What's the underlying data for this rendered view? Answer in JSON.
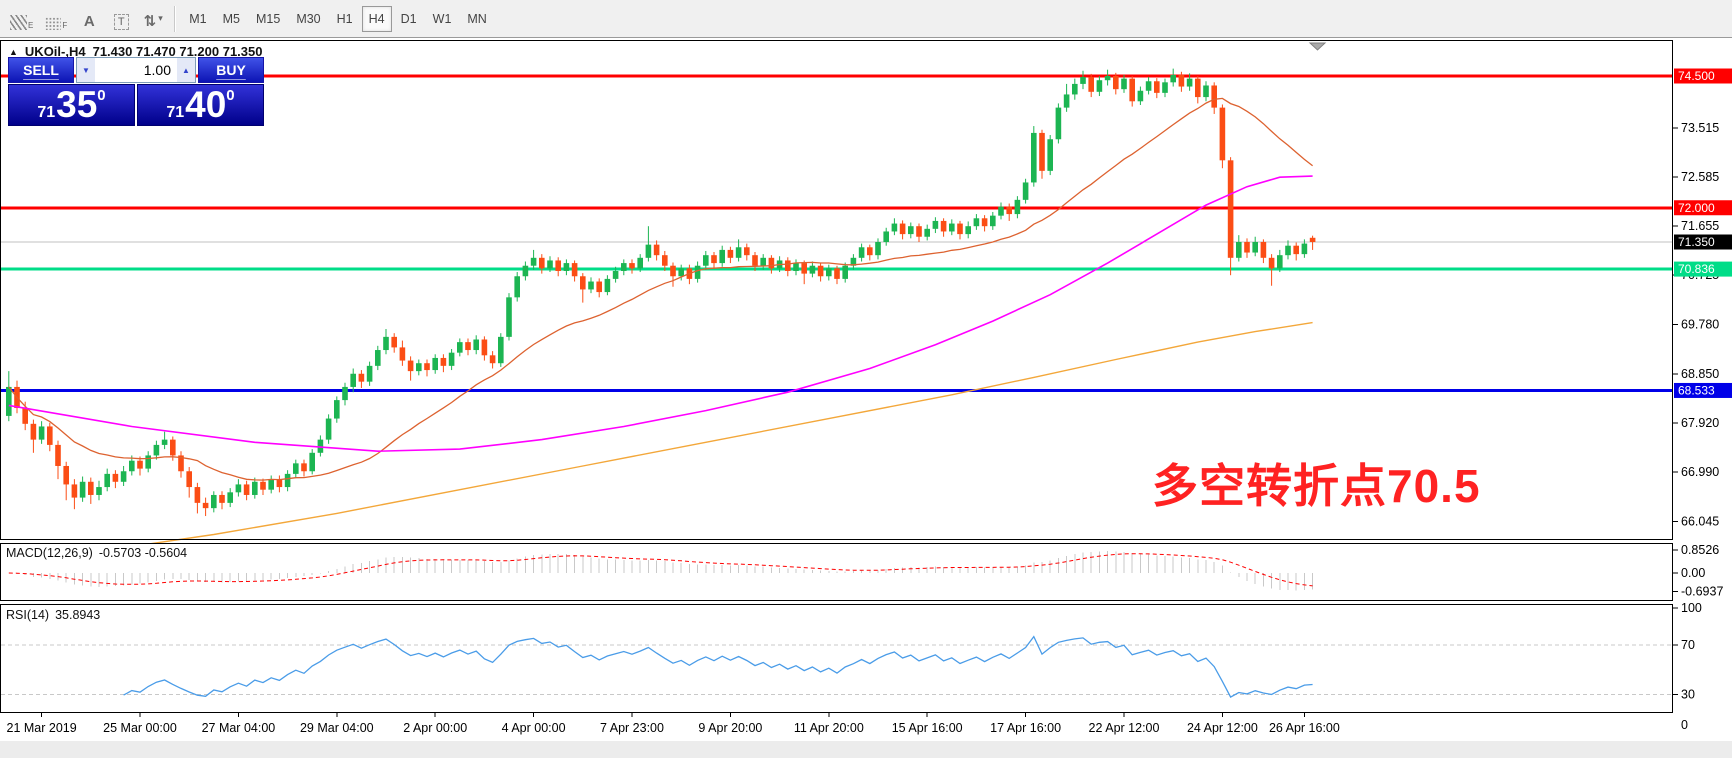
{
  "toolbar": {
    "tools": [
      {
        "name": "chart-style",
        "icon": "stripes",
        "sub": "E"
      },
      {
        "name": "grid",
        "icon": "dots",
        "sub": "F"
      },
      {
        "name": "text-label",
        "glyph": "A"
      },
      {
        "name": "text-box",
        "glyph": "T",
        "boxed": true
      },
      {
        "name": "sort-arrows",
        "glyph": "⇅",
        "caret": "▾"
      }
    ],
    "timeframes": [
      "M1",
      "M5",
      "M15",
      "M30",
      "H1",
      "H4",
      "D1",
      "W1",
      "MN"
    ],
    "active_timeframe": "H4"
  },
  "chart_header": {
    "collapse_icon": "▲",
    "symbol_period": "UKOil-,H4",
    "ohlc": "71.430 71.470 71.200 71.350"
  },
  "trade_panel": {
    "sell_label": "SELL",
    "buy_label": "BUY",
    "volume": "1.00",
    "volume_down": "▼",
    "volume_up": "▲",
    "sell_price": {
      "prefix": "71",
      "big": "35",
      "sup": "0"
    },
    "buy_price": {
      "prefix": "71",
      "big": "40",
      "sup": "0"
    }
  },
  "annotation": {
    "text": "多空转折点70.5",
    "color": "#ff2222"
  },
  "chart_data": {
    "type": "candlestick",
    "title": "UKOil-,H4",
    "symbol": "UKOil-",
    "period": "H4",
    "y_ticks": [
      73.515,
      72.585,
      71.655,
      70.725,
      69.78,
      68.85,
      67.92,
      66.99,
      66.045
    ],
    "levels": [
      {
        "value": 74.5,
        "label": "74.500",
        "color": "#ff0000",
        "width": 3,
        "badge_bg": "#ff0000",
        "badge_fg": "#ffffff"
      },
      {
        "value": 72.0,
        "label": "72.000",
        "color": "#ff0000",
        "width": 3,
        "badge_bg": "#ff0000",
        "badge_fg": "#ffffff"
      },
      {
        "value": 70.836,
        "label": "70.836",
        "color": "#00dd88",
        "width": 3,
        "badge_bg": "#00dd88",
        "badge_fg": "#ffffff"
      },
      {
        "value": 68.533,
        "label": "68.533",
        "color": "#0000e8",
        "width": 3,
        "badge_bg": "#0000e8",
        "badge_fg": "#ffffff"
      }
    ],
    "current_price": {
      "value": 71.35,
      "label": "71.350",
      "line_color": "#c0c0c0",
      "badge_bg": "#000000",
      "badge_fg": "#ffffff"
    },
    "x_labels": [
      "21 Mar 2019",
      "25 Mar 00:00",
      "27 Mar 04:00",
      "29 Mar 04:00",
      "2 Apr 00:00",
      "4 Apr 00:00",
      "7 Apr 23:00",
      "9 Apr 20:00",
      "11 Apr 20:00",
      "15 Apr 16:00",
      "17 Apr 16:00",
      "22 Apr 12:00",
      "24 Apr 12:00",
      "26 Apr 16:00"
    ],
    "x_tick_bars": [
      4,
      16,
      28,
      40,
      52,
      64,
      76,
      88,
      100,
      112,
      124,
      136,
      148,
      158
    ],
    "colors": {
      "up": "#1cb552",
      "down": "#fb4d15",
      "ma_fast": "#dd6230",
      "ma_mid": "#ff00ff",
      "ma_slow": "#f3a73a"
    },
    "candles": [
      [
        68.05,
        68.9,
        67.95,
        68.6
      ],
      [
        68.6,
        68.72,
        68.1,
        68.2
      ],
      [
        68.2,
        68.32,
        67.78,
        67.9
      ],
      [
        67.9,
        67.98,
        67.35,
        67.6
      ],
      [
        67.6,
        67.95,
        67.52,
        67.85
      ],
      [
        67.85,
        67.92,
        67.38,
        67.5
      ],
      [
        67.5,
        67.58,
        66.85,
        67.1
      ],
      [
        67.1,
        67.18,
        66.45,
        66.75
      ],
      [
        66.75,
        66.85,
        66.28,
        66.5
      ],
      [
        66.5,
        66.9,
        66.42,
        66.8
      ],
      [
        66.8,
        66.88,
        66.38,
        66.55
      ],
      [
        66.55,
        66.82,
        66.45,
        66.7
      ],
      [
        66.7,
        67.05,
        66.62,
        66.95
      ],
      [
        66.95,
        67.02,
        66.68,
        66.8
      ],
      [
        66.8,
        67.1,
        66.72,
        67.0
      ],
      [
        67.0,
        67.3,
        66.92,
        67.2
      ],
      [
        67.2,
        67.28,
        66.92,
        67.05
      ],
      [
        67.05,
        67.38,
        66.98,
        67.3
      ],
      [
        67.3,
        67.58,
        67.22,
        67.5
      ],
      [
        67.5,
        67.75,
        67.42,
        67.6
      ],
      [
        67.6,
        67.66,
        67.2,
        67.3
      ],
      [
        67.3,
        67.38,
        66.88,
        67.0
      ],
      [
        67.0,
        67.08,
        66.5,
        66.7
      ],
      [
        66.7,
        66.78,
        66.2,
        66.4
      ],
      [
        66.4,
        66.5,
        66.15,
        66.3
      ],
      [
        66.3,
        66.62,
        66.22,
        66.55
      ],
      [
        66.55,
        66.62,
        66.28,
        66.4
      ],
      [
        66.4,
        66.68,
        66.32,
        66.6
      ],
      [
        66.6,
        66.85,
        66.52,
        66.75
      ],
      [
        66.75,
        66.82,
        66.45,
        66.55
      ],
      [
        66.55,
        66.88,
        66.48,
        66.8
      ],
      [
        66.8,
        66.86,
        66.55,
        66.65
      ],
      [
        66.65,
        66.92,
        66.58,
        66.85
      ],
      [
        66.85,
        66.92,
        66.6,
        66.7
      ],
      [
        66.7,
        67.02,
        66.62,
        66.95
      ],
      [
        66.95,
        67.22,
        66.88,
        67.15
      ],
      [
        67.15,
        67.22,
        66.9,
        67.0
      ],
      [
        67.0,
        67.42,
        66.94,
        67.35
      ],
      [
        67.35,
        67.68,
        67.28,
        67.6
      ],
      [
        67.6,
        68.08,
        67.52,
        68.0
      ],
      [
        68.0,
        68.42,
        67.92,
        68.35
      ],
      [
        68.35,
        68.68,
        68.25,
        68.6
      ],
      [
        68.6,
        68.95,
        68.5,
        68.85
      ],
      [
        68.85,
        68.92,
        68.58,
        68.7
      ],
      [
        68.7,
        69.08,
        68.62,
        69.0
      ],
      [
        69.0,
        69.38,
        68.92,
        69.3
      ],
      [
        69.3,
        69.7,
        69.22,
        69.55
      ],
      [
        69.55,
        69.62,
        69.25,
        69.35
      ],
      [
        69.35,
        69.48,
        69.0,
        69.1
      ],
      [
        69.1,
        69.18,
        68.72,
        68.9
      ],
      [
        68.9,
        69.12,
        68.82,
        69.05
      ],
      [
        69.05,
        69.12,
        68.8,
        68.92
      ],
      [
        68.92,
        69.22,
        68.85,
        69.15
      ],
      [
        69.15,
        69.22,
        68.88,
        69.0
      ],
      [
        69.0,
        69.32,
        68.92,
        69.25
      ],
      [
        69.25,
        69.52,
        69.18,
        69.45
      ],
      [
        69.45,
        69.52,
        69.2,
        69.3
      ],
      [
        69.3,
        69.58,
        69.22,
        69.5
      ],
      [
        69.5,
        69.56,
        69.1,
        69.2
      ],
      [
        69.2,
        69.28,
        68.95,
        69.05
      ],
      [
        69.05,
        69.62,
        68.98,
        69.55
      ],
      [
        69.55,
        70.38,
        69.48,
        70.3
      ],
      [
        70.3,
        70.78,
        70.22,
        70.7
      ],
      [
        70.7,
        70.98,
        70.62,
        70.9
      ],
      [
        70.9,
        71.2,
        70.82,
        71.05
      ],
      [
        71.05,
        71.12,
        70.75,
        70.85
      ],
      [
        70.85,
        71.08,
        70.78,
        71.0
      ],
      [
        71.0,
        71.06,
        70.7,
        70.8
      ],
      [
        70.8,
        71.02,
        70.72,
        70.95
      ],
      [
        70.95,
        71.0,
        70.6,
        70.7
      ],
      [
        70.7,
        70.76,
        70.2,
        70.45
      ],
      [
        70.45,
        70.68,
        70.38,
        70.6
      ],
      [
        70.6,
        70.66,
        70.3,
        70.4
      ],
      [
        70.4,
        70.72,
        70.34,
        70.65
      ],
      [
        70.65,
        70.88,
        70.58,
        70.8
      ],
      [
        70.8,
        71.02,
        70.72,
        70.95
      ],
      [
        70.95,
        71.02,
        70.75,
        70.85
      ],
      [
        70.85,
        71.12,
        70.78,
        71.05
      ],
      [
        71.05,
        71.65,
        70.98,
        71.3
      ],
      [
        71.3,
        71.38,
        71.0,
        71.1
      ],
      [
        71.1,
        71.18,
        70.8,
        70.9
      ],
      [
        70.9,
        70.96,
        70.5,
        70.7
      ],
      [
        70.7,
        70.92,
        70.62,
        70.85
      ],
      [
        70.85,
        70.92,
        70.55,
        70.65
      ],
      [
        70.65,
        70.98,
        70.58,
        70.9
      ],
      [
        70.9,
        71.18,
        70.82,
        71.1
      ],
      [
        71.1,
        71.16,
        70.85,
        70.95
      ],
      [
        70.95,
        71.28,
        70.88,
        71.2
      ],
      [
        71.2,
        71.26,
        70.95,
        71.05
      ],
      [
        71.05,
        71.4,
        70.98,
        71.25
      ],
      [
        71.25,
        71.32,
        71.0,
        71.1
      ],
      [
        71.1,
        71.16,
        70.8,
        70.9
      ],
      [
        70.9,
        71.12,
        70.82,
        71.05
      ],
      [
        71.05,
        71.1,
        70.75,
        70.85
      ],
      [
        70.85,
        71.08,
        70.78,
        71.0
      ],
      [
        71.0,
        71.06,
        70.7,
        70.8
      ],
      [
        70.8,
        71.02,
        70.72,
        70.95
      ],
      [
        70.95,
        71.0,
        70.55,
        70.75
      ],
      [
        70.75,
        70.98,
        70.68,
        70.9
      ],
      [
        70.9,
        70.96,
        70.6,
        70.7
      ],
      [
        70.7,
        70.92,
        70.62,
        70.85
      ],
      [
        70.85,
        70.9,
        70.55,
        70.65
      ],
      [
        70.65,
        70.96,
        70.58,
        70.9
      ],
      [
        70.9,
        71.12,
        70.82,
        71.05
      ],
      [
        71.05,
        71.32,
        70.98,
        71.25
      ],
      [
        71.25,
        71.3,
        71.0,
        71.1
      ],
      [
        71.1,
        71.42,
        71.02,
        71.35
      ],
      [
        71.35,
        71.62,
        71.28,
        71.55
      ],
      [
        71.55,
        71.8,
        71.48,
        71.7
      ],
      [
        71.7,
        71.76,
        71.4,
        71.5
      ],
      [
        71.5,
        71.72,
        71.42,
        71.65
      ],
      [
        71.65,
        71.7,
        71.35,
        71.45
      ],
      [
        71.45,
        71.68,
        71.38,
        71.6
      ],
      [
        71.6,
        71.82,
        71.52,
        71.75
      ],
      [
        71.75,
        71.8,
        71.45,
        71.55
      ],
      [
        71.55,
        71.78,
        71.48,
        71.7
      ],
      [
        71.7,
        71.75,
        71.4,
        71.5
      ],
      [
        71.5,
        71.74,
        71.42,
        71.65
      ],
      [
        71.65,
        71.88,
        71.58,
        71.8
      ],
      [
        71.8,
        71.86,
        71.55,
        71.65
      ],
      [
        71.65,
        71.92,
        71.58,
        71.85
      ],
      [
        71.85,
        72.1,
        71.78,
        72.02
      ],
      [
        72.02,
        72.08,
        71.75,
        71.88
      ],
      [
        71.88,
        72.22,
        71.8,
        72.15
      ],
      [
        72.15,
        72.55,
        72.08,
        72.48
      ],
      [
        72.48,
        73.55,
        72.4,
        73.42
      ],
      [
        73.42,
        73.48,
        72.55,
        72.7
      ],
      [
        72.7,
        73.38,
        72.62,
        73.3
      ],
      [
        73.3,
        73.98,
        73.22,
        73.9
      ],
      [
        73.9,
        74.35,
        73.82,
        74.15
      ],
      [
        74.15,
        74.45,
        74.05,
        74.35
      ],
      [
        74.35,
        74.6,
        74.25,
        74.48
      ],
      [
        74.48,
        74.54,
        74.1,
        74.2
      ],
      [
        74.2,
        74.5,
        74.12,
        74.42
      ],
      [
        74.42,
        74.62,
        74.32,
        74.5
      ],
      [
        74.5,
        74.56,
        74.15,
        74.25
      ],
      [
        74.25,
        74.52,
        74.18,
        74.45
      ],
      [
        74.45,
        74.5,
        73.92,
        74.02
      ],
      [
        74.02,
        74.3,
        73.95,
        74.22
      ],
      [
        74.22,
        74.48,
        74.15,
        74.4
      ],
      [
        74.4,
        74.46,
        74.08,
        74.18
      ],
      [
        74.18,
        74.45,
        74.1,
        74.38
      ],
      [
        74.38,
        74.64,
        74.3,
        74.52
      ],
      [
        74.52,
        74.58,
        74.2,
        74.3
      ],
      [
        74.3,
        74.55,
        74.22,
        74.45
      ],
      [
        74.45,
        74.5,
        73.98,
        74.1
      ],
      [
        74.1,
        74.4,
        74.02,
        74.32
      ],
      [
        74.32,
        74.38,
        73.78,
        73.9
      ],
      [
        73.9,
        73.96,
        72.75,
        72.9
      ],
      [
        72.9,
        72.96,
        70.72,
        71.05
      ],
      [
        71.05,
        71.48,
        70.98,
        71.35
      ],
      [
        71.35,
        71.42,
        71.05,
        71.15
      ],
      [
        71.15,
        71.45,
        71.08,
        71.35
      ],
      [
        71.35,
        71.4,
        70.95,
        71.05
      ],
      [
        71.05,
        71.12,
        70.52,
        70.85
      ],
      [
        70.85,
        71.2,
        70.78,
        71.1
      ],
      [
        71.1,
        71.38,
        71.02,
        71.28
      ],
      [
        71.28,
        71.34,
        71.0,
        71.12
      ],
      [
        71.12,
        71.4,
        71.05,
        71.32
      ],
      [
        71.43,
        71.47,
        71.2,
        71.35
      ]
    ],
    "overlays": {
      "ma_fast": {
        "name": "fast-ma",
        "type": "sma",
        "period": 24
      },
      "ma_mid": {
        "name": "mid-ma",
        "waypoints": [
          [
            0,
            68.25
          ],
          [
            15,
            67.85
          ],
          [
            30,
            67.55
          ],
          [
            45,
            67.38
          ],
          [
            55,
            67.42
          ],
          [
            65,
            67.6
          ],
          [
            75,
            67.85
          ],
          [
            85,
            68.15
          ],
          [
            95,
            68.5
          ],
          [
            105,
            68.95
          ],
          [
            113,
            69.4
          ],
          [
            120,
            69.85
          ],
          [
            127,
            70.35
          ],
          [
            134,
            70.95
          ],
          [
            140,
            71.5
          ],
          [
            146,
            72.05
          ],
          [
            151,
            72.4
          ],
          [
            155,
            72.58
          ],
          [
            159,
            72.6
          ]
        ]
      },
      "ma_slow": {
        "name": "slow-ma",
        "waypoints": [
          [
            14,
            65.55
          ],
          [
            25,
            65.8
          ],
          [
            40,
            66.2
          ],
          [
            55,
            66.65
          ],
          [
            70,
            67.1
          ],
          [
            85,
            67.55
          ],
          [
            100,
            68.0
          ],
          [
            115,
            68.45
          ],
          [
            125,
            68.78
          ],
          [
            135,
            69.12
          ],
          [
            145,
            69.45
          ],
          [
            152,
            69.65
          ],
          [
            159,
            69.82
          ]
        ]
      }
    },
    "macd": {
      "label": "MACD(12,26,9)",
      "value_text": "-0.5703 -0.5604",
      "fast": 12,
      "slow": 26,
      "signal": 9,
      "axis_ticks": [
        [
          "0.8526",
          0.8526
        ],
        [
          "0.00",
          0.0
        ],
        [
          "-0.6937",
          -0.6937
        ]
      ],
      "hist_color": "#c9c9c9",
      "signal_color": "#ff0000"
    },
    "rsi": {
      "label": "RSI(14)",
      "value_text": "35.8943",
      "period": 14,
      "axis_ticks": [
        100,
        70,
        30,
        0
      ],
      "level_lines": [
        70,
        30
      ],
      "color": "#4a9ce8"
    }
  }
}
